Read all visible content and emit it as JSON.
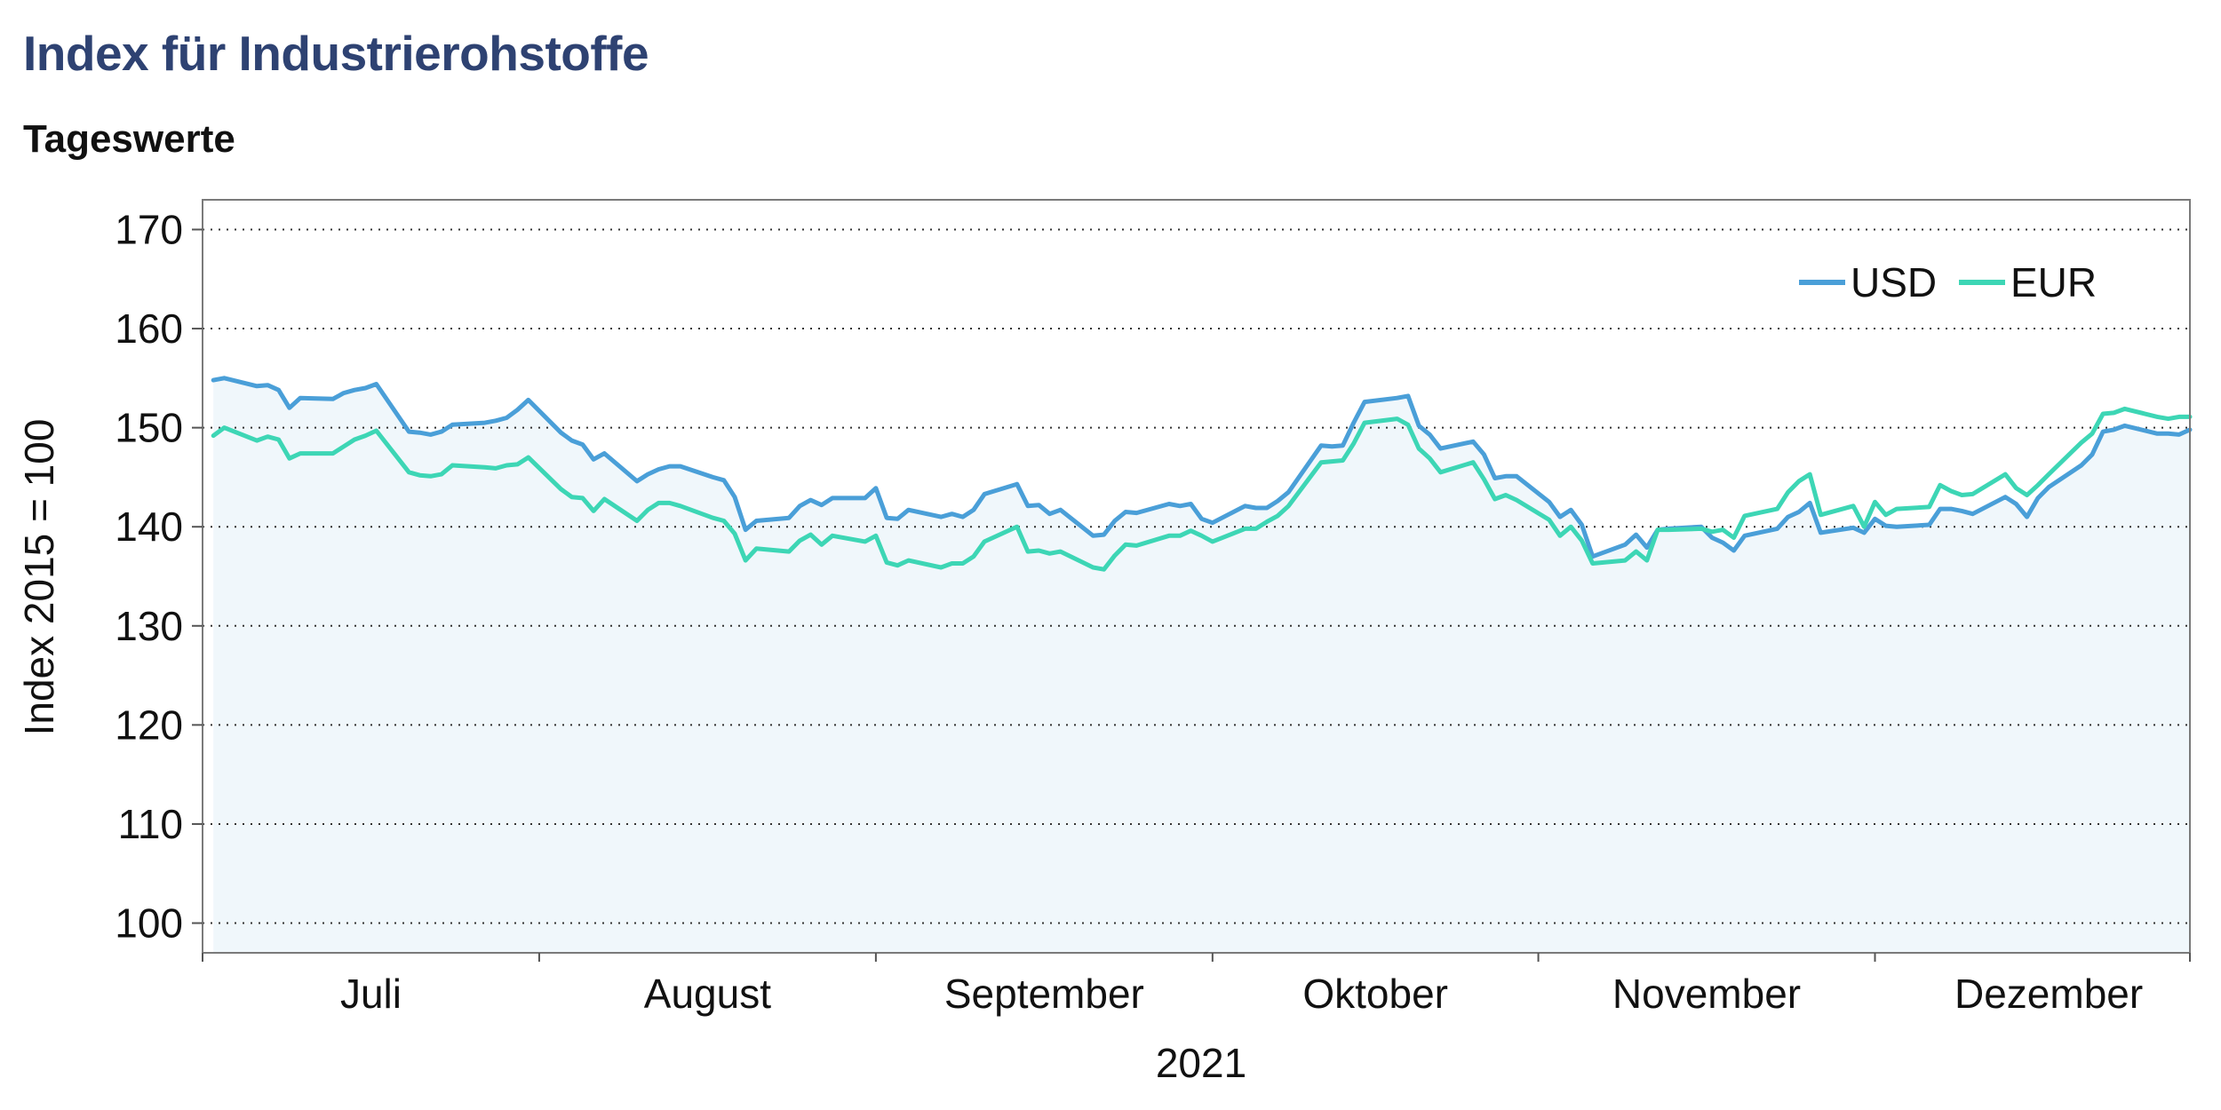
{
  "header": {
    "title": "Index für Industrierohstoffe",
    "subtitle": "Tageswerte"
  },
  "chart_data": {
    "type": "line",
    "ylabel": "Index 2015 = 100",
    "xlabel": "2021",
    "ylim": [
      97,
      173
    ],
    "yticks": [
      100,
      110,
      120,
      130,
      140,
      150,
      160,
      170
    ],
    "xlim": [
      0,
      183
    ],
    "x_month_boundaries": [
      0,
      31,
      62,
      93,
      123,
      154,
      183
    ],
    "month_labels": [
      {
        "label": "Juli",
        "day": 15.5
      },
      {
        "label": "August",
        "day": 46.5
      },
      {
        "label": "September",
        "day": 77.5
      },
      {
        "label": "Oktober",
        "day": 108
      },
      {
        "label": "November",
        "day": 138.5
      },
      {
        "label": "Dezember",
        "day": 170
      }
    ],
    "grid": true,
    "legend": "top-right",
    "colors": {
      "USD": "#4a9fd8",
      "EUR": "#3dd6b5",
      "fill": "#f0f7fb"
    },
    "x": [
      1,
      2,
      5,
      6,
      7,
      8,
      9,
      12,
      13,
      14,
      15,
      16,
      19,
      20,
      21,
      22,
      23,
      26,
      27,
      28,
      29,
      30,
      33,
      34,
      35,
      36,
      37,
      40,
      41,
      42,
      43,
      44,
      47,
      48,
      49,
      50,
      51,
      54,
      55,
      56,
      57,
      58,
      61,
      62,
      63,
      64,
      65,
      68,
      69,
      70,
      71,
      72,
      75,
      76,
      77,
      78,
      79,
      82,
      83,
      84,
      85,
      86,
      89,
      90,
      91,
      92,
      93,
      96,
      97,
      98,
      99,
      100,
      103,
      104,
      105,
      106,
      107,
      110,
      111,
      112,
      113,
      114,
      117,
      118,
      119,
      120,
      121,
      124,
      125,
      126,
      127,
      128,
      131,
      132,
      133,
      134,
      135,
      138,
      139,
      140,
      141,
      142,
      145,
      146,
      147,
      148,
      149,
      152,
      153,
      154,
      155,
      156,
      159,
      160,
      161,
      162,
      163,
      166,
      167,
      168,
      169,
      170,
      173,
      174,
      175,
      176,
      177,
      180,
      181,
      182,
      183
    ],
    "series": [
      {
        "name": "USD",
        "values": [
          154.8,
          155.0,
          154.2,
          154.3,
          153.8,
          152.0,
          153.0,
          152.9,
          153.5,
          153.8,
          154.0,
          154.4,
          149.6,
          149.5,
          149.3,
          149.6,
          150.3,
          150.5,
          150.7,
          151.0,
          151.8,
          152.8,
          149.5,
          148.7,
          148.3,
          146.8,
          147.4,
          144.6,
          145.3,
          145.8,
          146.1,
          146.1,
          145.0,
          144.7,
          143.0,
          139.7,
          140.6,
          140.9,
          142.1,
          142.7,
          142.2,
          142.9,
          142.9,
          143.9,
          140.9,
          140.8,
          141.7,
          141.0,
          141.3,
          141.0,
          141.7,
          143.3,
          144.3,
          142.1,
          142.2,
          141.3,
          141.7,
          139.1,
          139.2,
          140.6,
          141.5,
          141.4,
          142.3,
          142.1,
          142.3,
          140.8,
          140.4,
          142.1,
          141.9,
          141.9,
          142.6,
          143.5,
          148.2,
          148.1,
          148.2,
          150.5,
          152.6,
          153.0,
          153.2,
          150.2,
          149.3,
          147.9,
          148.6,
          147.3,
          144.9,
          145.1,
          145.1,
          142.5,
          141.0,
          141.7,
          140.2,
          137.0,
          138.2,
          139.2,
          137.9,
          139.7,
          139.8,
          140.0,
          138.9,
          138.4,
          137.6,
          139.1,
          139.8,
          141.0,
          141.5,
          142.4,
          139.4,
          139.9,
          139.4,
          140.8,
          140.1,
          140.0,
          140.2,
          141.8,
          141.8,
          141.6,
          141.3,
          143.0,
          142.3,
          141.0,
          142.9,
          144.0,
          146.2,
          147.3,
          149.6,
          149.8,
          150.2,
          149.4,
          149.4,
          149.3,
          149.8
        ]
      },
      {
        "name": "EUR",
        "values": [
          149.2,
          150.0,
          148.7,
          149.1,
          148.8,
          146.9,
          147.4,
          147.4,
          148.1,
          148.8,
          149.2,
          149.7,
          145.5,
          145.2,
          145.1,
          145.3,
          146.2,
          146.0,
          145.9,
          146.2,
          146.3,
          147.0,
          143.8,
          143.0,
          142.9,
          141.6,
          142.8,
          140.6,
          141.7,
          142.4,
          142.4,
          142.1,
          140.9,
          140.6,
          139.3,
          136.6,
          137.8,
          137.5,
          138.6,
          139.2,
          138.2,
          139.1,
          138.5,
          139.1,
          136.4,
          136.1,
          136.6,
          135.9,
          136.3,
          136.3,
          137.0,
          138.5,
          140.0,
          137.5,
          137.6,
          137.3,
          137.5,
          135.9,
          135.7,
          137.1,
          138.2,
          138.1,
          139.1,
          139.1,
          139.6,
          139.1,
          138.5,
          139.8,
          139.8,
          140.5,
          141.1,
          142.1,
          146.5,
          146.6,
          146.7,
          148.4,
          150.5,
          150.9,
          150.3,
          147.9,
          146.9,
          145.5,
          146.5,
          144.8,
          142.8,
          143.2,
          142.7,
          140.7,
          139.1,
          140.0,
          138.6,
          136.3,
          136.6,
          137.5,
          136.6,
          139.7,
          139.7,
          139.8,
          139.5,
          139.7,
          138.9,
          141.1,
          141.8,
          143.5,
          144.6,
          145.3,
          141.2,
          142.1,
          140.0,
          142.5,
          141.2,
          141.8,
          142.0,
          144.2,
          143.6,
          143.2,
          143.3,
          145.3,
          143.9,
          143.2,
          144.2,
          145.3,
          148.5,
          149.4,
          151.4,
          151.5,
          151.9,
          151.1,
          150.9,
          151.1,
          151.1
        ]
      }
    ]
  }
}
